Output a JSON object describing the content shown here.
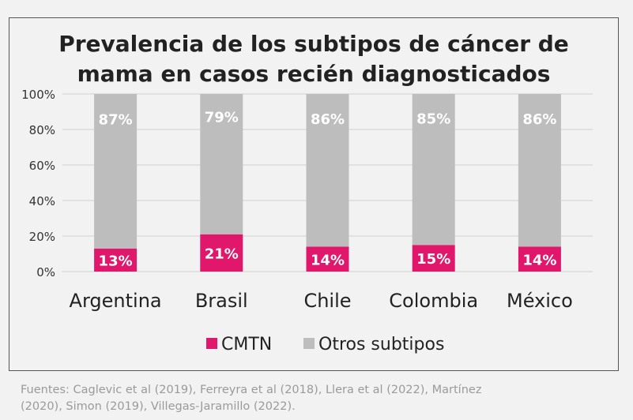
{
  "chart_data": {
    "type": "bar",
    "stacked": true,
    "title_line1": "Prevalencia de los subtipos de cáncer de",
    "title_line2": "mama en casos recién diagnosticados",
    "categories": [
      "Argentina",
      "Brasil",
      "Chile",
      "Colombia",
      "México"
    ],
    "series": [
      {
        "name": "CMTN",
        "values": [
          13,
          21,
          14,
          15,
          14
        ],
        "labels": [
          "13%",
          "21%",
          "14%",
          "15%",
          "14%"
        ],
        "color": "#e0176a"
      },
      {
        "name": "Otros subtipos",
        "values": [
          87,
          79,
          86,
          85,
          86
        ],
        "labels": [
          "87%",
          "79%",
          "86%",
          "85%",
          "86%"
        ],
        "color": "#bdbdbd"
      }
    ],
    "ylim": [
      0,
      100
    ],
    "yticks": [
      "0%",
      "20%",
      "40%",
      "60%",
      "80%",
      "100%"
    ],
    "grid": true,
    "legend_position": "bottom"
  },
  "footer": {
    "line1": "Fuentes: Caglevic et al (2019), Ferreyra et al (2018), Llera et al (2022), Martínez",
    "line2": "(2020), Simon (2019), Villegas-Jaramillo (2022)."
  }
}
